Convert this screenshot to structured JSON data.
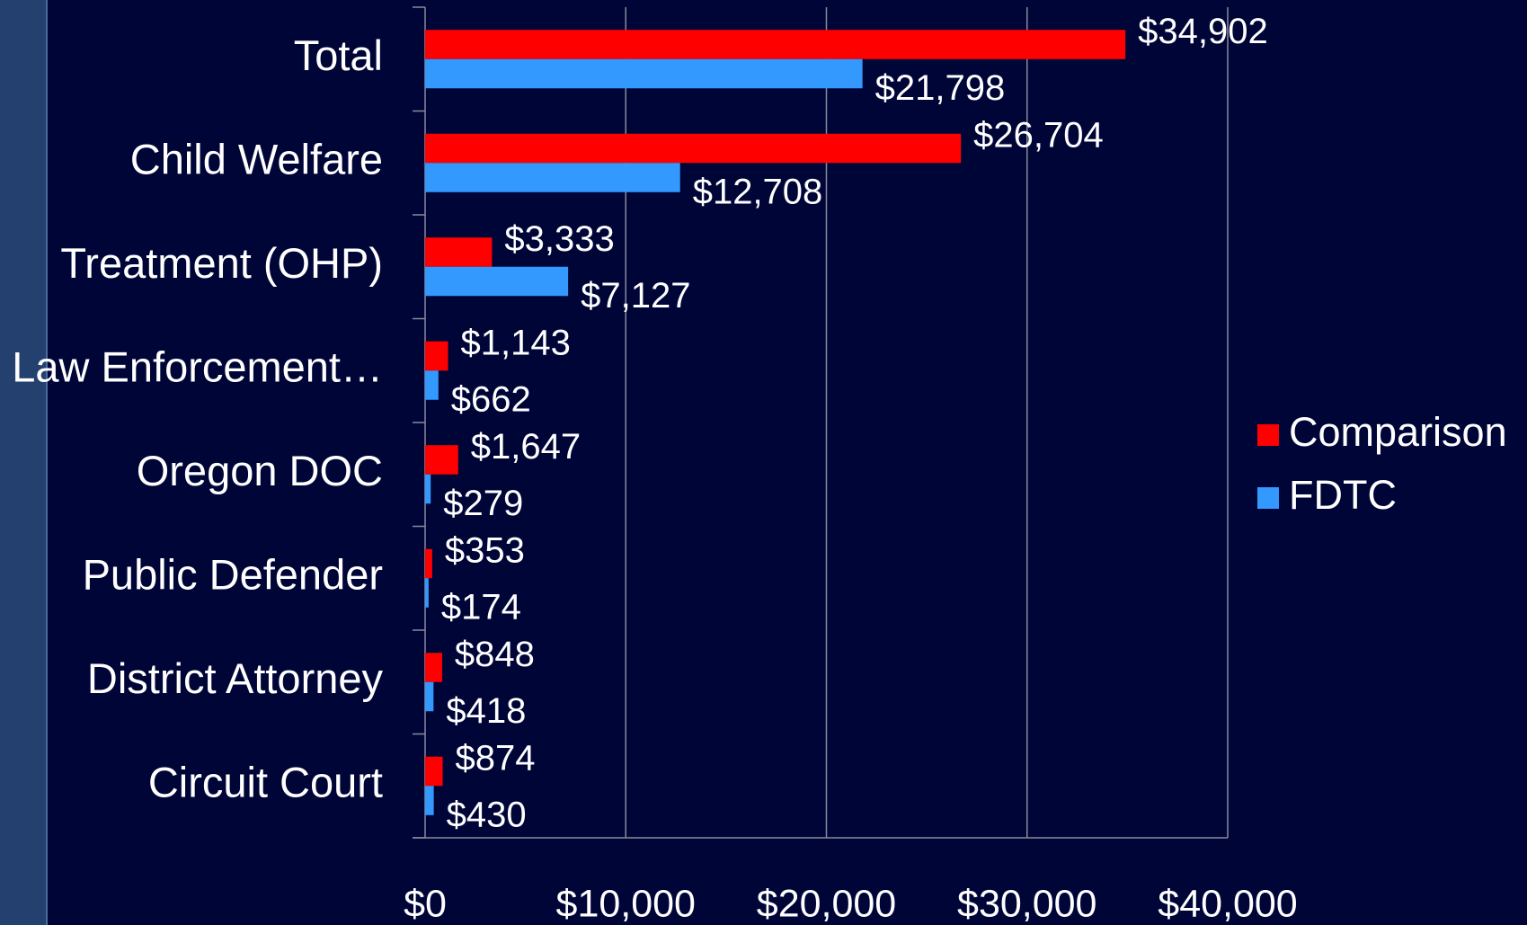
{
  "chart_data": {
    "type": "bar",
    "orientation": "horizontal",
    "categories": [
      "Total",
      "Child Welfare",
      "Treatment (OHP)",
      "Law Enforcement…",
      "Oregon DOC",
      "Public Defender",
      "District Attorney",
      "Circuit Court"
    ],
    "series": [
      {
        "name": "Comparison",
        "color": "#ff0000",
        "values": [
          34902,
          26704,
          3333,
          1143,
          1647,
          353,
          848,
          874
        ],
        "value_labels": [
          "$34,902",
          "$26,704",
          "$3,333",
          "$1,143",
          "$1,647",
          "$353",
          "$848",
          "$874"
        ]
      },
      {
        "name": "FDTC",
        "color": "#3399ff",
        "values": [
          21798,
          12708,
          7127,
          662,
          279,
          174,
          418,
          430
        ],
        "value_labels": [
          "$21,798",
          "$12,708",
          "$7,127",
          "$662",
          "$279",
          "$174",
          "$418",
          "$430"
        ]
      }
    ],
    "xlim": [
      0,
      40000
    ],
    "xticks": [
      {
        "value": 0,
        "label": "$0"
      },
      {
        "value": 10000,
        "label": "$10,000"
      },
      {
        "value": 20000,
        "label": "$20,000"
      },
      {
        "value": 30000,
        "label": "$30,000"
      },
      {
        "value": 40000,
        "label": "$40,000"
      }
    ],
    "grid": true,
    "legend": "right"
  }
}
